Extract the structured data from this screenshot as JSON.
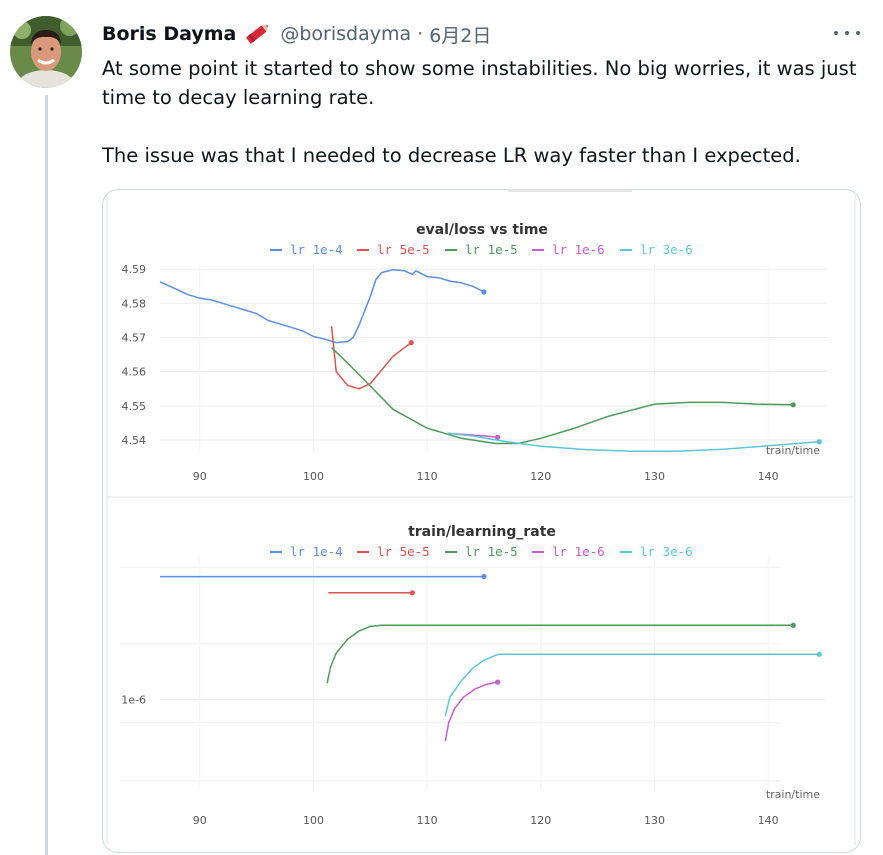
{
  "tweet": {
    "author_name": "Boris Dayma",
    "author_handle": "@borisdayma",
    "separator": "·",
    "date": "6月2日",
    "text_1": "At some point it started to show some instabilities. No big worries, it was just time to decay learning rate.",
    "text_2": "The issue was that I needed to decrease LR way faster than I expected."
  },
  "icons": {
    "verified_badge": "crayon-icon",
    "more": "more-options-icon"
  },
  "chart_data": [
    {
      "type": "line",
      "title": "eval/loss vs time",
      "xlabel": "train/time",
      "ylabel": "",
      "xlim": [
        86.5,
        145
      ],
      "ylim": [
        4.5365,
        4.5915
      ],
      "x_ticks": [
        90,
        100,
        110,
        120,
        130,
        140
      ],
      "y_ticks": [
        4.54,
        4.55,
        4.56,
        4.57,
        4.58,
        4.59
      ],
      "grid": true,
      "legend_placement": "top-center",
      "series": [
        {
          "name": "lr 1e-4",
          "color": "#5b8ee6",
          "x": [
            86.5,
            88,
            89,
            90,
            91,
            92,
            93,
            94,
            95,
            96,
            97,
            98,
            99,
            100,
            101,
            102,
            103,
            103.5,
            104,
            105,
            105.5,
            106,
            107,
            108,
            108.7,
            109,
            110,
            111,
            112,
            113,
            114,
            115
          ],
          "y": [
            4.5863,
            4.584,
            4.5825,
            4.5815,
            4.581,
            4.58,
            4.579,
            4.578,
            4.577,
            4.575,
            4.574,
            4.573,
            4.572,
            4.5703,
            4.5695,
            4.5685,
            4.5688,
            4.57,
            4.5735,
            4.582,
            4.587,
            4.589,
            4.5898,
            4.5895,
            4.5885,
            4.5895,
            4.5878,
            4.5875,
            4.5865,
            4.586,
            4.585,
            4.5833
          ]
        },
        {
          "name": "lr 5e-5",
          "color": "#e0534e",
          "x": [
            101.6,
            102,
            103,
            104,
            105,
            106,
            107,
            108,
            108.6
          ],
          "y": [
            4.5733,
            4.56,
            4.556,
            4.555,
            4.5565,
            4.5605,
            4.5645,
            4.567,
            4.5685
          ]
        },
        {
          "name": "lr 1e-5",
          "color": "#4f9a5a",
          "x": [
            101.6,
            103,
            105,
            107,
            110,
            113,
            116,
            118,
            120,
            123,
            126,
            130,
            133,
            136,
            139,
            142.2
          ],
          "y": [
            4.567,
            4.5625,
            4.5558,
            4.549,
            4.5435,
            4.5405,
            4.539,
            4.539,
            4.5405,
            4.5435,
            4.547,
            4.5505,
            4.551,
            4.551,
            4.5505,
            4.5503
          ]
        },
        {
          "name": "lr 1e-6",
          "color": "#c95bd1",
          "x": [
            111.8,
            113,
            115,
            116.2
          ],
          "y": [
            4.542,
            4.5417,
            4.5412,
            4.5408
          ]
        },
        {
          "name": "lr 3e-6",
          "color": "#5bc6d9",
          "x": [
            111.8,
            114,
            117,
            120,
            124,
            128,
            132,
            136,
            140,
            144.5
          ],
          "y": [
            4.542,
            4.5412,
            4.5395,
            4.5382,
            4.5372,
            4.5367,
            4.5367,
            4.5373,
            4.5383,
            4.5395
          ]
        }
      ]
    },
    {
      "type": "line",
      "title": "train/learning_rate",
      "xlabel": "train/time",
      "ylabel": "",
      "xlim": [
        86.5,
        145
      ],
      "ylim": [
        0,
        10
      ],
      "x_ticks": [
        90,
        100,
        110,
        120,
        130,
        140
      ],
      "y_tick_labels": [
        "1e-6"
      ],
      "grid": true,
      "legend_placement": "top-center",
      "series": [
        {
          "name": "lr 1e-4",
          "color": "#5b8ee6",
          "x": [
            86.5,
            115
          ],
          "y": [
            9.2,
            9.2
          ]
        },
        {
          "name": "lr 5e-5",
          "color": "#e0534e",
          "x": [
            101.3,
            108.7
          ],
          "y": [
            8.5,
            8.5
          ]
        },
        {
          "name": "lr 1e-5",
          "color": "#4f9a5a",
          "x": [
            101.2,
            101.5,
            102,
            103,
            104,
            105,
            106,
            110,
            120,
            130,
            142.2
          ],
          "y": [
            4.6,
            5.3,
            5.9,
            6.5,
            6.85,
            7.05,
            7.1,
            7.1,
            7.1,
            7.1,
            7.1
          ]
        },
        {
          "name": "lr 1e-6",
          "color": "#c95bd1",
          "x": [
            111.6,
            111.9,
            112.4,
            113.2,
            114.2,
            115.2,
            116.2
          ],
          "y": [
            2.1,
            2.9,
            3.5,
            4.0,
            4.35,
            4.55,
            4.65
          ]
        },
        {
          "name": "lr 3e-6",
          "color": "#5bc6d9",
          "x": [
            111.6,
            112,
            113,
            114,
            115,
            116,
            116.3,
            120,
            130,
            144.5
          ],
          "y": [
            3.2,
            4.0,
            4.7,
            5.25,
            5.6,
            5.8,
            5.85,
            5.85,
            5.85,
            5.85
          ]
        }
      ]
    }
  ]
}
